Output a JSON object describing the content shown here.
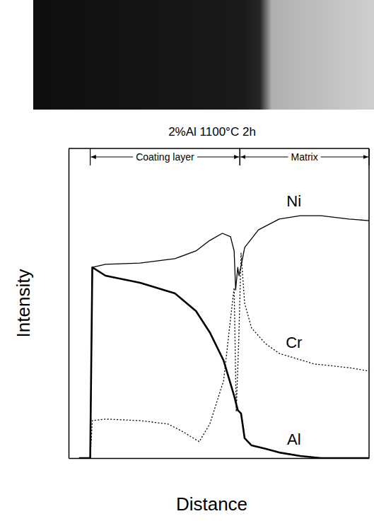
{
  "chart_data": {
    "type": "line",
    "title": "2%Al 1100°C 2h",
    "x_label": "Distance",
    "y_label": "Intensity",
    "xlim": [
      0,
      100
    ],
    "ylim": [
      0,
      100
    ],
    "tick_labels": false,
    "grid": false,
    "annotations": [
      {
        "text": "Coating layer",
        "x": [
          7.2,
          57.0
        ]
      },
      {
        "text": "Matrix",
        "x": [
          57.0,
          100
        ]
      }
    ],
    "series": [
      {
        "name": "Ni",
        "color": "#000000",
        "line_style": "solid",
        "x": [
          3.5,
          7.2,
          7.9,
          12.3,
          23.8,
          35.4,
          42.4,
          47.0,
          51.2,
          53.9,
          55.1,
          55.6,
          56.3,
          56.7,
          57.4,
          58.6,
          63.2,
          70.1,
          77.1,
          84.0,
          93.3,
          100
        ],
        "values": [
          0,
          0,
          61.6,
          62.6,
          63.0,
          64.4,
          66.9,
          70.3,
          72.6,
          71.5,
          66.9,
          54.3,
          61.6,
          58.9,
          62.0,
          68.0,
          73.7,
          77.2,
          78.3,
          78.3,
          77.2,
          76.7
        ]
      },
      {
        "name": "Cr",
        "color": "#000000",
        "line_style": "dotted",
        "x": [
          3.5,
          7.2,
          7.9,
          12.3,
          23.8,
          33.1,
          37.7,
          43.5,
          47.0,
          51.6,
          53.9,
          55.1,
          55.8,
          56.7,
          57.4,
          58.6,
          60.9,
          65.5,
          70.1,
          81.7,
          93.3,
          100
        ],
        "values": [
          0,
          0,
          12.1,
          12.6,
          12.1,
          11.0,
          8.7,
          5.3,
          11.0,
          25.0,
          45.0,
          55.0,
          15.0,
          40.0,
          66.2,
          50.0,
          42.0,
          37.0,
          33.8,
          30.4,
          29.2,
          28.1
        ]
      },
      {
        "name": "Al",
        "color": "#000000",
        "line_style": "thick",
        "x": [
          3.5,
          7.2,
          7.9,
          12.3,
          23.8,
          35.4,
          42.4,
          47.0,
          51.6,
          55.1,
          56.3,
          57.4,
          58.6,
          60.9,
          65.5,
          70.1,
          77.1,
          84.0,
          100
        ],
        "values": [
          0,
          0,
          61.6,
          58.9,
          56.6,
          53.2,
          47.5,
          40.6,
          31.5,
          20.1,
          15.5,
          14.4,
          6.4,
          4.1,
          3.0,
          1.8,
          0.7,
          0,
          0
        ]
      }
    ]
  }
}
